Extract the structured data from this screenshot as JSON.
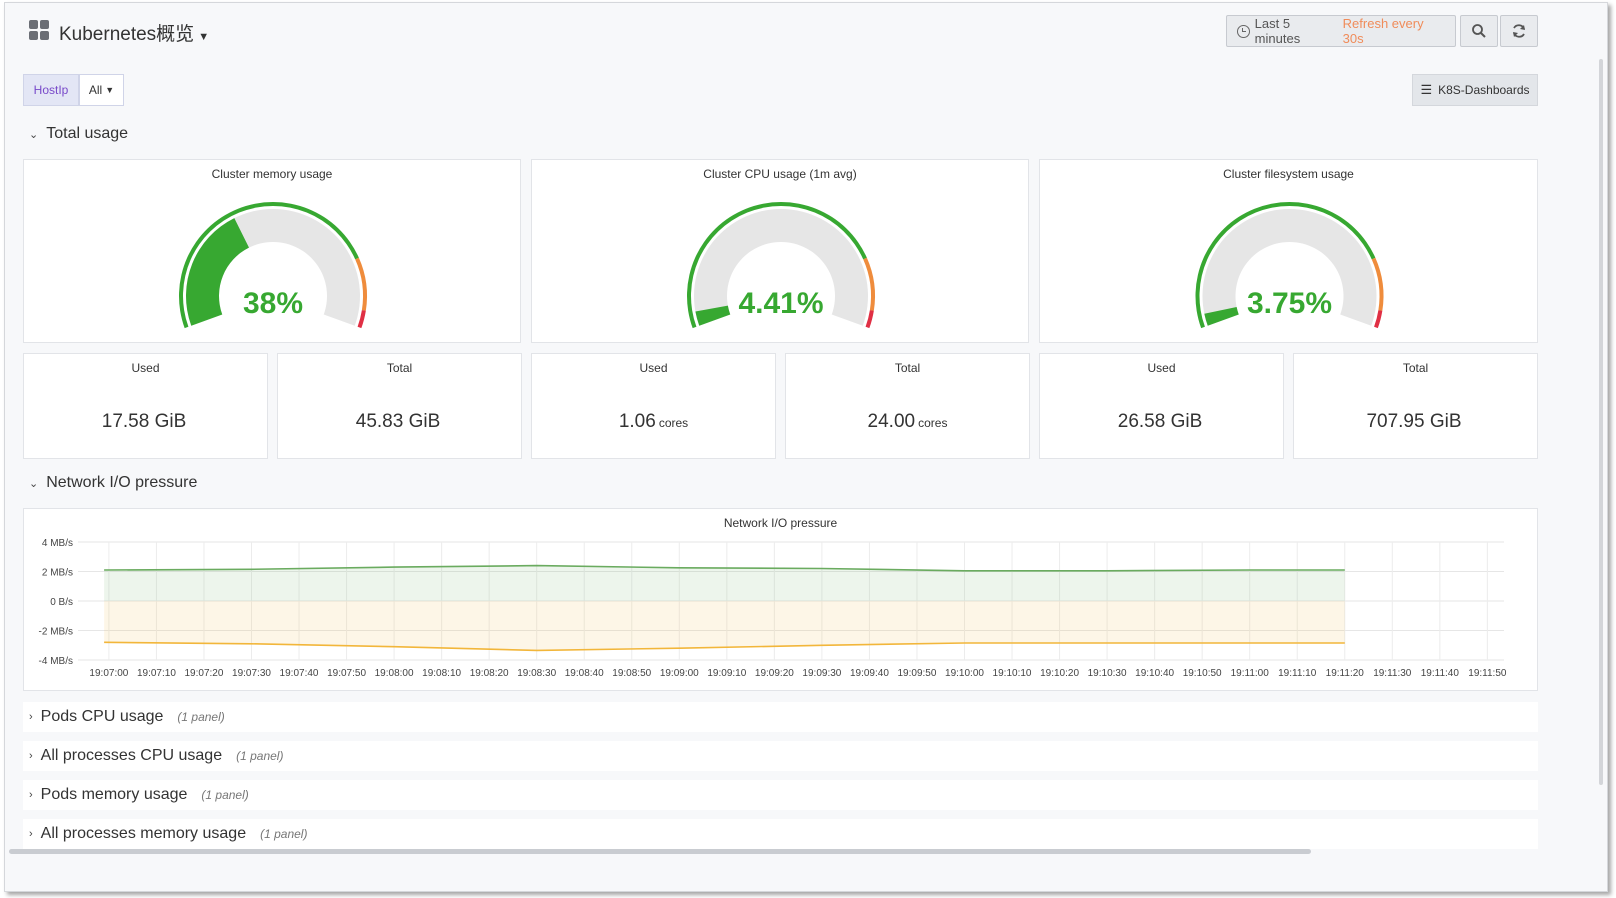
{
  "header": {
    "title": "Kubernetes概览",
    "time_range": "Last 5 minutes",
    "refresh": "Refresh every 30s",
    "links_label": "K8S-Dashboards"
  },
  "variables": {
    "label": "HostIp",
    "value": "All"
  },
  "rows": {
    "total_usage": "Total usage",
    "network": "Network I/O pressure"
  },
  "gauges": [
    {
      "title": "Cluster memory usage",
      "value_text": "38%",
      "percent": 38
    },
    {
      "title": "Cluster CPU usage (1m avg)",
      "value_text": "4.41%",
      "percent": 4.41
    },
    {
      "title": "Cluster filesystem usage",
      "value_text": "3.75%",
      "percent": 3.75
    }
  ],
  "stats": [
    {
      "title": "Used",
      "value": "17.58 GiB",
      "unit": ""
    },
    {
      "title": "Total",
      "value": "45.83 GiB",
      "unit": ""
    },
    {
      "title": "Used",
      "value": "1.06",
      "unit": "cores"
    },
    {
      "title": "Total",
      "value": "24.00",
      "unit": "cores"
    },
    {
      "title": "Used",
      "value": "26.58 GiB",
      "unit": ""
    },
    {
      "title": "Total",
      "value": "707.95 GiB",
      "unit": ""
    }
  ],
  "collapsed_rows": [
    {
      "label": "Pods CPU usage",
      "count": "(1 panel)"
    },
    {
      "label": "All processes CPU usage",
      "count": "(1 panel)"
    },
    {
      "label": "Pods memory usage",
      "count": "(1 panel)"
    },
    {
      "label": "All processes memory usage",
      "count": "(1 panel)"
    }
  ],
  "colors": {
    "gauge_green": "#37a831",
    "gauge_orange": "#ef8c3c",
    "gauge_red": "#e02f44",
    "gauge_track": "#e6e6e6",
    "received": "#6aab5f",
    "transmitted": "#f2b63a"
  },
  "chart_data": {
    "type": "area",
    "title": "Network I/O pressure",
    "y_ticks": [
      "4 MB/s",
      "2 MB/s",
      "0 B/s",
      "-2 MB/s",
      "-4 MB/s"
    ],
    "ylim": [
      -4,
      4
    ],
    "x_ticks": [
      "19:07:00",
      "19:07:10",
      "19:07:20",
      "19:07:30",
      "19:07:40",
      "19:07:50",
      "19:08:00",
      "19:08:10",
      "19:08:20",
      "19:08:30",
      "19:08:40",
      "19:08:50",
      "19:09:00",
      "19:09:10",
      "19:09:20",
      "19:09:30",
      "19:09:40",
      "19:09:50",
      "19:10:00",
      "19:10:10",
      "19:10:20",
      "19:10:30",
      "19:10:40",
      "19:10:50",
      "19:11:00",
      "19:11:10",
      "19:11:20",
      "19:11:30",
      "19:11:40",
      "19:11:50"
    ],
    "x": [
      "19:06:59",
      "19:07:30",
      "19:08:00",
      "19:08:30",
      "19:09:00",
      "19:09:30",
      "19:10:00",
      "19:10:30",
      "19:11:00",
      "19:11:20"
    ],
    "series": [
      {
        "values": [
          2.1,
          2.15,
          2.3,
          2.4,
          2.25,
          2.2,
          2.05,
          2.05,
          2.1,
          2.1
        ]
      },
      {
        "values": [
          -2.8,
          -2.9,
          -3.1,
          -3.35,
          -3.2,
          -3.0,
          -2.85,
          -2.85,
          -2.85,
          -2.85
        ]
      }
    ]
  }
}
